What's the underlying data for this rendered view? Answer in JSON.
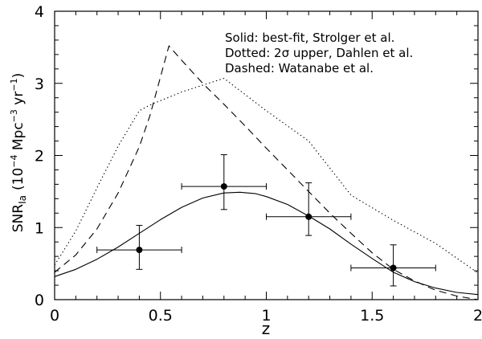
{
  "chart_data": {
    "type": "line",
    "xlabel": "z",
    "ylabel": {
      "main": "SNR",
      "subscript": "Ia",
      "units_prefix": "(10",
      "exp1": "−4",
      "units_mid": " Mpc",
      "exp2": "−3",
      "units_mid2": " yr",
      "exp3": "−1",
      "units_suffix": ")"
    },
    "xlim": [
      0,
      2
    ],
    "ylim": [
      0,
      4
    ],
    "x_ticks": [
      "0",
      "0.5",
      "1",
      "1.5",
      "2"
    ],
    "y_ticks": [
      "0",
      "1",
      "2",
      "3",
      "4"
    ],
    "legend": [
      "Solid: best-fit, Strolger et al.",
      "Dotted: 2σ upper, Dahlen et al.",
      "Dashed: Watanabe et al."
    ],
    "series": [
      {
        "style": "solid",
        "x": [
          0,
          0.1,
          0.2,
          0.3,
          0.4,
          0.5,
          0.6,
          0.7,
          0.8,
          0.875,
          0.95,
          1.0,
          1.1,
          1.2,
          1.3,
          1.4,
          1.5,
          1.6,
          1.7,
          1.8,
          1.9,
          2.0
        ],
        "y": [
          0.32,
          0.42,
          0.56,
          0.73,
          0.92,
          1.11,
          1.28,
          1.41,
          1.48,
          1.49,
          1.47,
          1.43,
          1.32,
          1.16,
          0.98,
          0.77,
          0.57,
          0.38,
          0.25,
          0.16,
          0.1,
          0.07
        ]
      },
      {
        "style": "dotted",
        "x": [
          0,
          0.1,
          0.2,
          0.3,
          0.4,
          0.45,
          0.6,
          0.8,
          1.0,
          1.2,
          1.4,
          1.6,
          1.8,
          2.0
        ],
        "y": [
          0.48,
          0.95,
          1.55,
          2.13,
          2.62,
          2.7,
          2.88,
          3.07,
          2.62,
          2.2,
          1.45,
          1.1,
          0.78,
          0.37
        ]
      },
      {
        "style": "dashed",
        "x": [
          0,
          0.1,
          0.2,
          0.3,
          0.4,
          0.45,
          0.54,
          0.6,
          0.7,
          0.8,
          0.9,
          1.0,
          1.1,
          1.2,
          1.3,
          1.4,
          1.5,
          1.6,
          1.7,
          1.8,
          1.9,
          2.0
        ],
        "y": [
          0.38,
          0.62,
          0.98,
          1.48,
          2.12,
          2.55,
          3.52,
          3.32,
          3.0,
          2.71,
          2.41,
          2.1,
          1.8,
          1.5,
          1.2,
          0.92,
          0.65,
          0.42,
          0.26,
          0.13,
          0.05,
          0.0
        ]
      }
    ],
    "points": [
      {
        "x": 0.4,
        "y": 0.69,
        "xerr": 0.2,
        "yerr_lo": 0.27,
        "yerr_hi": 0.34
      },
      {
        "x": 0.8,
        "y": 1.57,
        "xerr": 0.2,
        "yerr_lo": 0.32,
        "yerr_hi": 0.44
      },
      {
        "x": 1.2,
        "y": 1.15,
        "xerr": 0.2,
        "yerr_lo": 0.26,
        "yerr_hi": 0.47
      },
      {
        "x": 1.6,
        "y": 0.44,
        "xerr": 0.2,
        "yerr_lo": 0.25,
        "yerr_hi": 0.32
      }
    ]
  }
}
